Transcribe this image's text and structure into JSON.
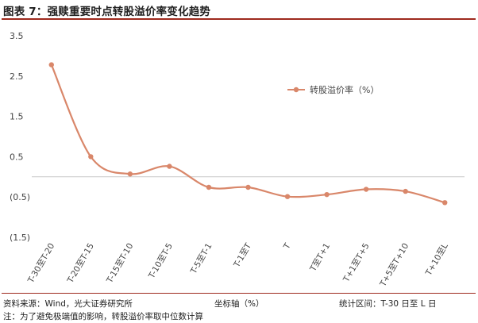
{
  "header": {
    "title": "图表 7：强赎重要时点转股溢价率变化趋势"
  },
  "footer": {
    "source": "资料来源：Wind，光大证券研究所",
    "xaxis_note": "坐标轴（%）",
    "range_note": "统计区间：T-30 日至 L 日",
    "note": "注：为了避免极端值的影响，转股溢价率取中位数计算"
  },
  "chart_data": {
    "type": "line",
    "title": "",
    "xlabel": "",
    "ylabel": "",
    "ylim": [
      -1.5,
      3.5
    ],
    "yticks": [
      "3.5",
      "2.5",
      "1.5",
      "0.5",
      "(0.5)",
      "(1.5)"
    ],
    "categories": [
      "T-30至T-20",
      "T-20至T-15",
      "T-15至T-10",
      "T-10至T-5",
      "T-5至T-1",
      "T-1至T",
      "T",
      "T至T+1",
      "T+1至T+5",
      "T+5至T+10",
      "T+10至L"
    ],
    "series": [
      {
        "name": "转股溢价率（%）",
        "color": "#d9876a",
        "values": [
          2.78,
          0.5,
          0.07,
          0.26,
          -0.26,
          -0.26,
          -0.49,
          -0.44,
          -0.31,
          -0.36,
          -0.64
        ]
      }
    ],
    "legend": "top-right",
    "grid": false
  }
}
